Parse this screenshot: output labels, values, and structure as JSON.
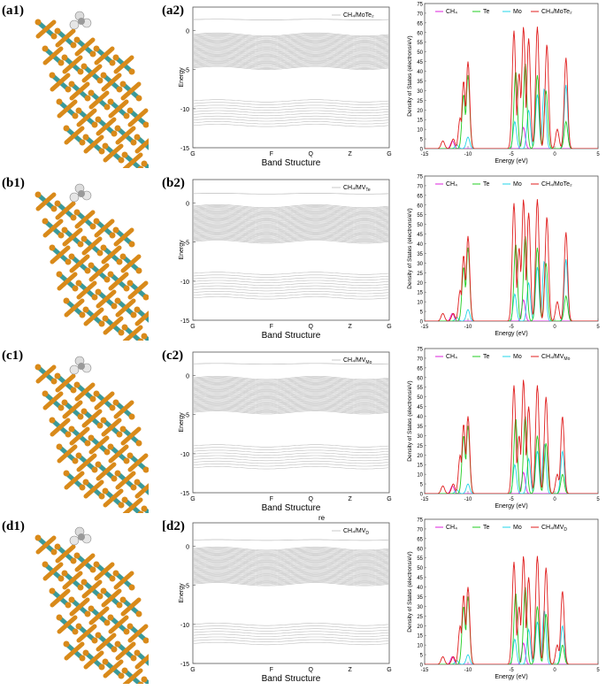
{
  "panels": [
    {
      "label_struct": "(a1)",
      "label_bs": "(a2)",
      "bs_legend": "CH₄/MoTe₂",
      "bands": {
        "top": [
          1.4
        ],
        "mid": [
          -0.5,
          -4.9
        ],
        "low": [
          -9.0,
          -12.2
        ]
      },
      "dos_legend": [
        "CH₄",
        "Te",
        "Mo",
        "CH₄/MoTe₂"
      ],
      "total_peaks": [
        [
          -12.9,
          4
        ],
        [
          -11.7,
          5
        ],
        [
          -10.9,
          16
        ],
        [
          -10.5,
          35
        ],
        [
          -10.0,
          45
        ],
        [
          -4.7,
          61
        ],
        [
          -4.1,
          39
        ],
        [
          -3.6,
          63
        ],
        [
          -3.0,
          57
        ],
        [
          -2.0,
          63
        ],
        [
          -0.9,
          54
        ],
        [
          0.3,
          10
        ],
        [
          1.3,
          47
        ]
      ],
      "te_peaks": [
        [
          -10.5,
          28
        ],
        [
          -10.0,
          38
        ],
        [
          -4.5,
          40
        ],
        [
          -3.4,
          44
        ],
        [
          -2.0,
          38
        ],
        [
          -1.0,
          30
        ],
        [
          1.3,
          14
        ]
      ],
      "mo_peaks": [
        [
          -11.3,
          2
        ],
        [
          -10.0,
          6
        ],
        [
          -4.6,
          14
        ],
        [
          -3.0,
          20
        ],
        [
          -2.0,
          28
        ],
        [
          -1.2,
          31
        ],
        [
          1.3,
          33
        ]
      ],
      "ch4_peaks": [
        [
          -11.8,
          4
        ],
        [
          -3.6,
          11
        ]
      ]
    },
    {
      "label_struct": "(b1)",
      "label_bs": "(b2)",
      "bs_legend": "CH₄/MV_Te",
      "bands": {
        "top": [
          1.2
        ],
        "mid": [
          -0.4,
          -5.0
        ],
        "low": [
          -9.0,
          -12.2
        ]
      },
      "dos_legend": [
        "CH₄",
        "Te",
        "Mo",
        "CH₄/MoTe₂"
      ],
      "total_peaks": [
        [
          -12.9,
          4
        ],
        [
          -11.7,
          4
        ],
        [
          -10.9,
          16
        ],
        [
          -10.5,
          34
        ],
        [
          -10.0,
          44
        ],
        [
          -4.7,
          61
        ],
        [
          -4.1,
          38
        ],
        [
          -3.6,
          63
        ],
        [
          -3.0,
          56
        ],
        [
          -2.0,
          63
        ],
        [
          -0.9,
          54
        ],
        [
          0.3,
          10
        ],
        [
          1.3,
          46
        ]
      ],
      "te_peaks": [
        [
          -10.5,
          28
        ],
        [
          -10.0,
          38
        ],
        [
          -4.5,
          40
        ],
        [
          -3.4,
          44
        ],
        [
          -2.0,
          38
        ],
        [
          -1.0,
          30
        ],
        [
          1.3,
          13
        ]
      ],
      "mo_peaks": [
        [
          -11.3,
          2
        ],
        [
          -10.0,
          6
        ],
        [
          -4.6,
          14
        ],
        [
          -3.0,
          20
        ],
        [
          -2.0,
          28
        ],
        [
          -1.2,
          31
        ],
        [
          1.3,
          32
        ]
      ],
      "ch4_peaks": [
        [
          -11.8,
          4
        ],
        [
          -3.6,
          11
        ]
      ]
    },
    {
      "label_struct": "(c1)",
      "label_bs": "(c2)",
      "bs_legend": "CH₄/MV_Mo",
      "bands": {
        "top": [
          1.5
        ],
        "mid": [
          -0.3,
          -4.8
        ],
        "low": [
          -9.0,
          -12.0
        ]
      },
      "dos_legend": [
        "CH₄",
        "Te",
        "Mo",
        "CH₄/MV_Mo"
      ],
      "total_peaks": [
        [
          -12.9,
          4
        ],
        [
          -11.7,
          5
        ],
        [
          -10.9,
          20
        ],
        [
          -10.5,
          36
        ],
        [
          -10.0,
          40
        ],
        [
          -4.7,
          56
        ],
        [
          -4.1,
          30
        ],
        [
          -3.6,
          59
        ],
        [
          -3.0,
          45
        ],
        [
          -2.0,
          56
        ],
        [
          -1.0,
          50
        ],
        [
          0.3,
          10
        ],
        [
          0.9,
          40
        ]
      ],
      "te_peaks": [
        [
          -10.5,
          30
        ],
        [
          -10.0,
          35
        ],
        [
          -4.5,
          39
        ],
        [
          -3.4,
          40
        ],
        [
          -2.0,
          30
        ],
        [
          -1.0,
          26
        ],
        [
          0.9,
          10
        ]
      ],
      "mo_peaks": [
        [
          -11.3,
          2
        ],
        [
          -10.0,
          5
        ],
        [
          -4.6,
          15
        ],
        [
          -3.0,
          18
        ],
        [
          -2.0,
          22
        ],
        [
          -1.2,
          26
        ],
        [
          0.9,
          22
        ]
      ],
      "ch4_peaks": [
        [
          -11.8,
          4
        ],
        [
          -3.6,
          11
        ]
      ]
    },
    {
      "label_struct": "(d1)",
      "label_bs": "[d2)",
      "bs_legend": "CH₄/MV_D",
      "bands": {
        "top": [
          0.8
        ],
        "mid": [
          -0.3,
          -4.9
        ],
        "low": [
          -10.0,
          -12.6
        ]
      },
      "dos_legend": [
        "CH₄",
        "Te",
        "Mo",
        "CH₄/MV_D"
      ],
      "total_peaks": [
        [
          -12.9,
          4
        ],
        [
          -11.7,
          4
        ],
        [
          -10.9,
          20
        ],
        [
          -10.5,
          36
        ],
        [
          -10.0,
          40
        ],
        [
          -4.7,
          53
        ],
        [
          -4.1,
          30
        ],
        [
          -3.6,
          56
        ],
        [
          -3.0,
          45
        ],
        [
          -2.0,
          56
        ],
        [
          -1.0,
          50
        ],
        [
          0.3,
          10
        ],
        [
          0.9,
          38
        ]
      ],
      "te_peaks": [
        [
          -10.5,
          30
        ],
        [
          -10.0,
          35
        ],
        [
          -4.5,
          37
        ],
        [
          -3.4,
          40
        ],
        [
          -2.0,
          30
        ],
        [
          -1.0,
          26
        ],
        [
          0.9,
          10
        ]
      ],
      "mo_peaks": [
        [
          -11.3,
          2
        ],
        [
          -10.0,
          5
        ],
        [
          -4.6,
          13
        ],
        [
          -3.0,
          18
        ],
        [
          -2.0,
          22
        ],
        [
          -1.2,
          28
        ],
        [
          0.9,
          20
        ]
      ],
      "ch4_peaks": [
        [
          -11.8,
          4
        ],
        [
          -3.6,
          11
        ]
      ]
    }
  ],
  "bs_axis": {
    "ylabel": "Energy",
    "xlabel": "Band Structure",
    "yticks": [
      "0",
      "-5",
      "-10",
      "-15"
    ],
    "kpoints": [
      "G",
      "F",
      "Q",
      "Z",
      "G"
    ]
  },
  "dos_axis": {
    "ylabel": "Density of States (electrons/eV)",
    "xlabel": "Energy (eV)",
    "xticks": [
      "-15",
      "-10",
      "-5",
      "0",
      "5"
    ],
    "yticks": [
      "0",
      "5",
      "10",
      "15",
      "20",
      "25",
      "30",
      "35",
      "40",
      "45",
      "50",
      "55",
      "60",
      "65",
      "70",
      "75"
    ]
  },
  "stray_mark": "re",
  "colors": {
    "total": "#e01e1e",
    "te": "#22cc22",
    "mo": "#22d4e8",
    "ch4": "#dd22dd",
    "band": "#bdbdbd",
    "mo_atom": "#3a9a9a",
    "te_atom": "#d98a1a"
  },
  "chart_data": [
    {
      "type": "line",
      "title": "",
      "xlabel": "Band Structure",
      "ylabel": "Energy",
      "ylim": [
        -15,
        3
      ],
      "series": [
        {
          "name": "CH₄/MoTe₂"
        }
      ]
    },
    {
      "type": "line",
      "title": "",
      "xlabel": "Energy (eV)",
      "ylabel": "Density of States (electrons/eV)",
      "xlim": [
        -15,
        5
      ],
      "ylim": [
        0,
        75
      ],
      "series": [
        {
          "name": "CH₄"
        },
        {
          "name": "Te"
        },
        {
          "name": "Mo"
        },
        {
          "name": "CH₄/MoTe₂"
        }
      ]
    }
  ]
}
